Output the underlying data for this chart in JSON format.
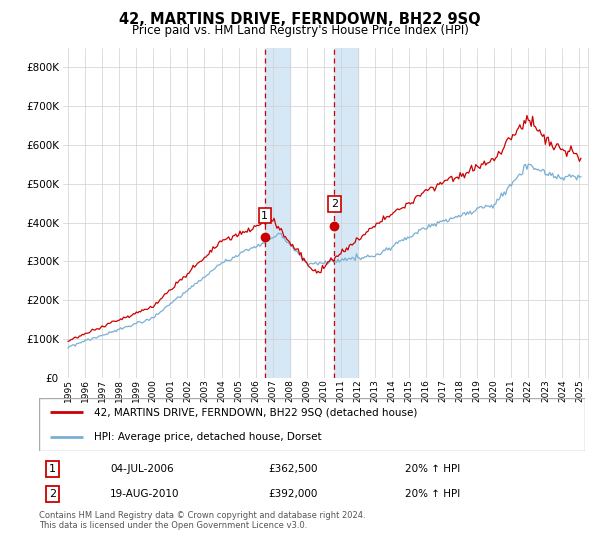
{
  "title": "42, MARTINS DRIVE, FERNDOWN, BH22 9SQ",
  "subtitle": "Price paid vs. HM Land Registry's House Price Index (HPI)",
  "legend_line1": "42, MARTINS DRIVE, FERNDOWN, BH22 9SQ (detached house)",
  "legend_line2": "HPI: Average price, detached house, Dorset",
  "footer": "Contains HM Land Registry data © Crown copyright and database right 2024.\nThis data is licensed under the Open Government Licence v3.0.",
  "transaction1_date": "04-JUL-2006",
  "transaction1_price": "£362,500",
  "transaction1_hpi": "20% ↑ HPI",
  "transaction2_date": "19-AUG-2010",
  "transaction2_price": "£392,000",
  "transaction2_hpi": "20% ↑ HPI",
  "ylim": [
    0,
    850000
  ],
  "yticks": [
    0,
    100000,
    200000,
    300000,
    400000,
    500000,
    600000,
    700000,
    800000
  ],
  "red_color": "#cc0000",
  "blue_color": "#7ab0d4",
  "highlight_color": "#d6e8f5",
  "transaction1_x_year": 2006.54,
  "transaction1_y": 362500,
  "transaction2_x_year": 2010.62,
  "transaction2_y": 392000,
  "highlight_x1_start": 2006.54,
  "highlight_x1_end": 2008.0,
  "highlight_x2_start": 2010.62,
  "highlight_x2_end": 2012.0,
  "xlim_start": 1995.0,
  "xlim_end": 2025.5,
  "xtick_years": [
    1995,
    1996,
    1997,
    1998,
    1999,
    2000,
    2001,
    2002,
    2003,
    2004,
    2005,
    2006,
    2007,
    2008,
    2009,
    2010,
    2011,
    2012,
    2013,
    2014,
    2015,
    2016,
    2017,
    2018,
    2019,
    2020,
    2021,
    2022,
    2023,
    2024,
    2025
  ]
}
